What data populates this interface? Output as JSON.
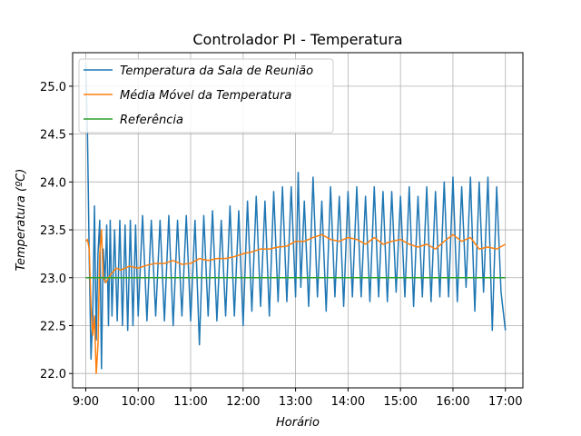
{
  "chart_data": {
    "type": "line",
    "title": "Controlador PI - Temperatura",
    "xlabel": "Horário",
    "ylabel": "Temperatura (ºC)",
    "xlim": [
      "08:45",
      "17:20"
    ],
    "ylim": [
      21.85,
      25.35
    ],
    "x_ticks": [
      "9:00",
      "10:00",
      "11:00",
      "12:00",
      "13:00",
      "14:00",
      "15:00",
      "16:00",
      "17:00"
    ],
    "y_ticks": [
      "22.0",
      "22.5",
      "23.0",
      "23.5",
      "24.0",
      "24.5",
      "25.0"
    ],
    "grid": true,
    "legend_position": "upper-left",
    "colors": {
      "temperature": "#1f77b4",
      "moving_average": "#ff7f0e",
      "reference": "#2ca02c"
    },
    "series": [
      {
        "name": "Temperatura da Sala de Reunião",
        "color": "#1f77b4",
        "x": [
          "09:00",
          "09:02",
          "09:04",
          "09:06",
          "09:08",
          "09:10",
          "09:12",
          "09:14",
          "09:16",
          "09:18",
          "09:20",
          "09:22",
          "09:24",
          "09:26",
          "09:28",
          "09:30",
          "09:33",
          "09:36",
          "09:39",
          "09:42",
          "09:45",
          "09:48",
          "09:51",
          "09:54",
          "09:57",
          "10:00",
          "10:05",
          "10:10",
          "10:15",
          "10:20",
          "10:25",
          "10:30",
          "10:35",
          "10:40",
          "10:45",
          "10:50",
          "10:55",
          "11:00",
          "11:05",
          "11:10",
          "11:15",
          "11:20",
          "11:25",
          "11:30",
          "11:35",
          "11:40",
          "11:45",
          "11:50",
          "11:55",
          "12:00",
          "12:05",
          "12:10",
          "12:15",
          "12:20",
          "12:25",
          "12:30",
          "12:35",
          "12:40",
          "12:45",
          "12:50",
          "12:55",
          "13:00",
          "13:03",
          "13:06",
          "13:10",
          "13:15",
          "13:20",
          "13:25",
          "13:30",
          "13:35",
          "13:40",
          "13:45",
          "13:50",
          "13:55",
          "14:00",
          "14:05",
          "14:10",
          "14:15",
          "14:20",
          "14:25",
          "14:30",
          "14:35",
          "14:40",
          "14:45",
          "14:50",
          "14:55",
          "15:00",
          "15:05",
          "15:10",
          "15:15",
          "15:20",
          "15:25",
          "15:30",
          "15:35",
          "15:40",
          "15:45",
          "15:50",
          "15:55",
          "16:00",
          "16:05",
          "16:10",
          "16:15",
          "16:20",
          "16:25",
          "16:30",
          "16:35",
          "16:40",
          "16:45",
          "16:50",
          "16:55",
          "17:00"
        ],
        "values": [
          25.25,
          24.5,
          23.2,
          22.15,
          22.6,
          23.75,
          22.35,
          23.25,
          23.6,
          22.05,
          23.3,
          22.95,
          23.55,
          22.5,
          23.6,
          22.6,
          23.5,
          22.55,
          23.6,
          22.5,
          23.55,
          22.45,
          23.6,
          22.5,
          23.55,
          22.6,
          23.65,
          22.55,
          23.6,
          22.6,
          23.6,
          22.55,
          23.65,
          22.5,
          23.6,
          22.6,
          23.65,
          22.55,
          23.6,
          22.3,
          23.65,
          22.6,
          23.7,
          22.55,
          23.6,
          22.6,
          23.75,
          22.6,
          23.7,
          22.5,
          23.8,
          22.65,
          23.85,
          22.7,
          23.8,
          22.6,
          23.9,
          22.75,
          23.95,
          22.75,
          23.95,
          22.8,
          24.1,
          22.9,
          23.8,
          22.7,
          24.05,
          22.8,
          23.8,
          22.65,
          23.95,
          22.8,
          23.85,
          22.7,
          23.9,
          22.8,
          23.95,
          22.8,
          23.85,
          22.75,
          23.95,
          22.8,
          23.9,
          22.75,
          23.9,
          22.85,
          23.85,
          22.8,
          23.95,
          22.7,
          23.85,
          22.8,
          23.95,
          22.75,
          23.9,
          22.8,
          24.0,
          22.8,
          24.05,
          22.75,
          23.95,
          22.9,
          24.05,
          22.65,
          24.0,
          22.85,
          24.05,
          22.45,
          23.95,
          22.85,
          22.45
        ]
      },
      {
        "name": "Média Móvel da Temperatura",
        "color": "#ff7f0e",
        "x": [
          "09:00",
          "09:02",
          "09:04",
          "09:06",
          "09:08",
          "09:10",
          "09:12",
          "09:14",
          "09:16",
          "09:18",
          "09:20",
          "09:23",
          "09:26",
          "09:30",
          "09:35",
          "09:40",
          "09:45",
          "09:50",
          "10:00",
          "10:10",
          "10:20",
          "10:30",
          "10:40",
          "10:50",
          "11:00",
          "11:10",
          "11:20",
          "11:30",
          "11:40",
          "11:50",
          "12:00",
          "12:10",
          "12:20",
          "12:30",
          "12:40",
          "12:50",
          "13:00",
          "13:10",
          "13:20",
          "13:30",
          "13:40",
          "13:50",
          "14:00",
          "14:10",
          "14:20",
          "14:30",
          "14:40",
          "14:50",
          "15:00",
          "15:10",
          "15:20",
          "15:30",
          "15:40",
          "15:50",
          "16:00",
          "16:10",
          "16:20",
          "16:30",
          "16:40",
          "16:50",
          "17:00"
        ],
        "values": [
          23.38,
          23.4,
          23.3,
          22.7,
          22.4,
          22.6,
          22.0,
          22.3,
          23.25,
          23.5,
          23.0,
          22.95,
          23.0,
          23.05,
          23.1,
          23.08,
          23.1,
          23.12,
          23.1,
          23.13,
          23.15,
          23.15,
          23.18,
          23.14,
          23.15,
          23.2,
          23.18,
          23.2,
          23.2,
          23.22,
          23.25,
          23.27,
          23.3,
          23.3,
          23.32,
          23.33,
          23.38,
          23.38,
          23.42,
          23.45,
          23.4,
          23.38,
          23.42,
          23.4,
          23.35,
          23.42,
          23.35,
          23.38,
          23.4,
          23.35,
          23.32,
          23.35,
          23.3,
          23.38,
          23.45,
          23.38,
          23.42,
          23.3,
          23.32,
          23.3,
          23.35
        ]
      },
      {
        "name": "Referência",
        "color": "#2ca02c",
        "x": [
          "09:00",
          "17:00"
        ],
        "values": [
          23.0,
          23.0
        ]
      }
    ]
  }
}
